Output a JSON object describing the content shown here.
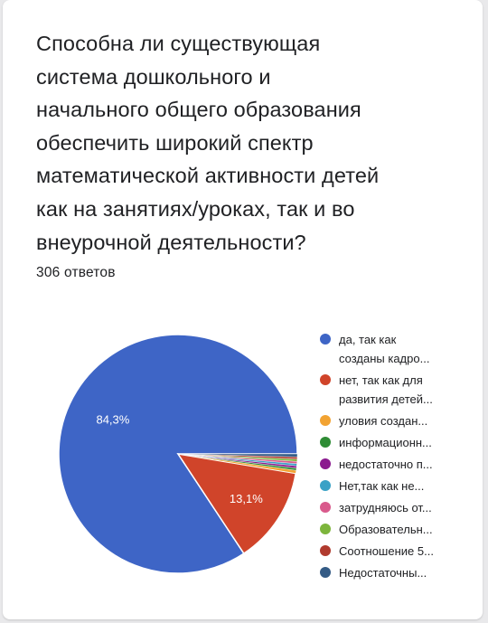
{
  "question": {
    "title_lines": [
      "Способна ли существующая",
      "система дошкольного и",
      "начального общего образования",
      "обеспечить широкий спектр",
      "математической активности детей",
      "как на занятиях/уроках, так и во",
      "внеурочной деятельности?"
    ],
    "response_count": "306 ответов"
  },
  "chart_data": {
    "type": "pie",
    "slices": [
      {
        "label_lines": [
          "да, так как",
          "созданы кадро..."
        ],
        "value": 84.3,
        "data_label": "84,3%",
        "color": "#3e65c6"
      },
      {
        "label_lines": [
          "нет, так как для",
          "развития детей..."
        ],
        "value": 13.1,
        "data_label": "13,1%",
        "color": "#d0442a"
      },
      {
        "label_lines": [
          "уловия создан..."
        ],
        "value": 0.4,
        "color": "#f2a332"
      },
      {
        "label_lines": [
          "информационн..."
        ],
        "value": 0.3,
        "color": "#2f8c35"
      },
      {
        "label_lines": [
          "недостаточно п..."
        ],
        "value": 0.3,
        "color": "#8b1a8f"
      },
      {
        "label_lines": [
          "Нет,так как не..."
        ],
        "value": 0.3,
        "color": "#3aa1c6"
      },
      {
        "label_lines": [
          "затрудняюсь от..."
        ],
        "value": 0.3,
        "color": "#d95a8c"
      },
      {
        "label_lines": [
          "Образовательн..."
        ],
        "value": 0.3,
        "color": "#7db53c"
      },
      {
        "label_lines": [
          "Соотношение 5..."
        ],
        "value": 0.3,
        "color": "#b03a2e"
      },
      {
        "label_lines": [
          "Недостаточны..."
        ],
        "value": 0.4,
        "color": "#345b85"
      }
    ]
  }
}
